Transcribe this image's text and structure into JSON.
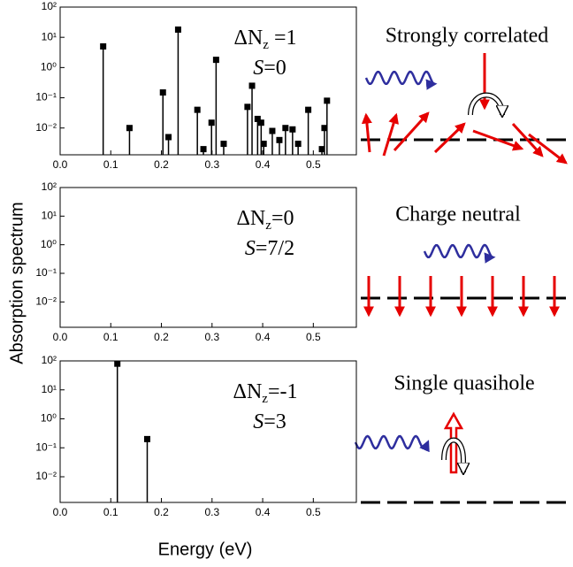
{
  "ylabel": "Absorption spectrum",
  "xlabel": "Energy (eV)",
  "chart_data": [
    {
      "type": "stem",
      "color": "#000000",
      "log_y": true,
      "annotation": {
        "main": "ΔN",
        "sub": "z",
        "rest": " =1",
        "spin_italic": "S",
        "spin_rest": "=0"
      },
      "x": [
        0.085,
        0.137,
        0.203,
        0.214,
        0.233,
        0.271,
        0.283,
        0.299,
        0.308,
        0.323,
        0.37,
        0.379,
        0.39,
        0.397,
        0.402,
        0.419,
        0.433,
        0.445,
        0.459,
        0.47,
        0.49,
        0.517,
        0.522,
        0.527
      ],
      "values": [
        5,
        0.01,
        0.15,
        0.005,
        18,
        0.04,
        0.002,
        0.015,
        1.8,
        0.003,
        0.05,
        0.25,
        0.02,
        0.015,
        0.003,
        0.008,
        0.004,
        0.01,
        0.009,
        0.003,
        0.04,
        0.002,
        0.01,
        0.08
      ],
      "xlim": [
        0,
        0.585
      ],
      "ylim": [
        0.0013,
        100
      ],
      "xticks": [
        {
          "value": 0,
          "label": "0.0"
        },
        0.1,
        0.2,
        0.3,
        0.4,
        0.5
      ],
      "yticks": [
        {
          "value": 100,
          "label": "10²"
        },
        {
          "value": 10,
          "label": "10¹"
        },
        {
          "value": 1,
          "label": "10⁰"
        },
        {
          "value": 0.1,
          "label": "10⁻¹"
        },
        {
          "value": 0.01,
          "label": "10⁻²"
        }
      ]
    },
    {
      "type": "stem",
      "color": "#000000",
      "log_y": true,
      "annotation": {
        "main": "ΔN",
        "sub": "z",
        "rest": "=0",
        "spin_italic": "S",
        "spin_rest": "=7/2"
      },
      "x": [],
      "values": [],
      "xlim": [
        0,
        0.585
      ],
      "ylim": [
        0.0013,
        100
      ],
      "xticks": [
        {
          "value": 0,
          "label": "0.0"
        },
        0.1,
        0.2,
        0.3,
        0.4,
        0.5
      ],
      "yticks": [
        {
          "value": 100,
          "label": "10²"
        },
        {
          "value": 10,
          "label": "10¹"
        },
        {
          "value": 1,
          "label": "10⁰"
        },
        {
          "value": 0.1,
          "label": "10⁻¹"
        },
        {
          "value": 0.01,
          "label": "10⁻²"
        }
      ]
    },
    {
      "type": "stem",
      "color": "#000000",
      "log_y": true,
      "annotation": {
        "main": "ΔN",
        "sub": "z",
        "rest": "=-1",
        "spin_italic": "S",
        "spin_rest": "=3"
      },
      "x": [
        0.113,
        0.172
      ],
      "values": [
        80,
        0.2
      ],
      "xlim": [
        0,
        0.585
      ],
      "ylim": [
        0.0013,
        100
      ],
      "xticks": [
        {
          "value": 0,
          "label": "0.0"
        },
        0.1,
        0.2,
        0.3,
        0.4,
        0.5
      ],
      "yticks": [
        {
          "value": 100,
          "label": "10²"
        },
        {
          "value": 10,
          "label": "10¹"
        },
        {
          "value": 1,
          "label": "10⁰"
        },
        {
          "value": 0.1,
          "label": "10⁻¹"
        },
        {
          "value": 0.01,
          "label": "10⁻²"
        }
      ]
    }
  ],
  "diagrams": [
    {
      "label": "Strongly correlated"
    },
    {
      "label": "Charge neutral"
    },
    {
      "label": "Single quasihole"
    }
  ]
}
